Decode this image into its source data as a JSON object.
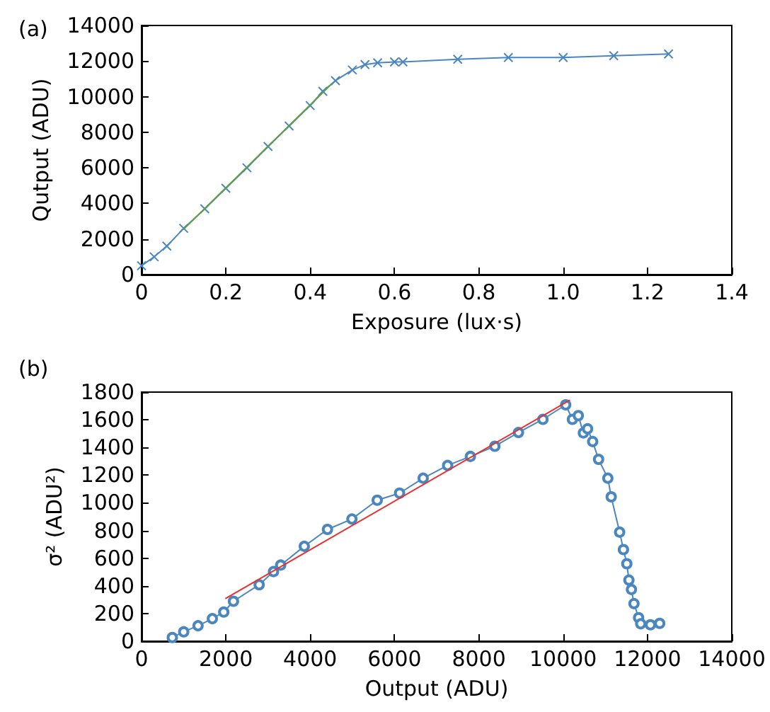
{
  "chart_data": [
    {
      "type": "line",
      "title": "(a)",
      "xlabel": "Exposure (lux·s)",
      "ylabel": "Qutput (ADU)",
      "xlim": [
        0,
        1.4
      ],
      "xticks": [
        0,
        0.2,
        0.4,
        0.6,
        0.8,
        {
          "value": 1,
          "label": "1.0"
        },
        1.2,
        1.4
      ],
      "ylim": [
        0,
        14000
      ],
      "yticks": [
        0,
        2000,
        4000,
        6000,
        8000,
        10000,
        12000,
        14000
      ],
      "grid": false,
      "marker": "cross",
      "line_style": "solid",
      "series": [
        {
          "color": "#4a86c0",
          "x": [
            0,
            0.03,
            0.06,
            0.1,
            0.15,
            0.2,
            0.25,
            0.3,
            0.35,
            0.4,
            0.43,
            0.46,
            0.5,
            0.53,
            0.56,
            0.6,
            0.62,
            0.75,
            0.87,
            1.0,
            1.12,
            1.25
          ],
          "values": [
            500,
            1000,
            1600,
            2600,
            3700,
            4850,
            6000,
            7200,
            8350,
            9500,
            10300,
            10900,
            11500,
            11800,
            11900,
            11950,
            11950,
            12100,
            12200,
            12200,
            12300,
            12400
          ]
        },
        {
          "color": "#5fa040",
          "marker": "none",
          "x": [
            0.1,
            0.45
          ],
          "values": [
            2550,
            10700
          ]
        }
      ]
    },
    {
      "type": "line",
      "title": "(b)",
      "xlabel": "Output (ADU)",
      "ylabel": "σ² (ADU²)",
      "xlim": [
        0,
        14000
      ],
      "xticks": [
        0,
        2000,
        4000,
        6000,
        8000,
        10000,
        12000,
        14000
      ],
      "ylim": [
        0,
        1800
      ],
      "yticks": [
        0,
        200,
        400,
        600,
        800,
        1000,
        1200,
        1400,
        1600,
        1800
      ],
      "grid": false,
      "marker": "circle",
      "line_style": "solid",
      "series": [
        {
          "color": "#4a86c0",
          "x": [
            730,
            1000,
            1340,
            1680,
            1950,
            2180,
            2790,
            3130,
            3300,
            3860,
            4410,
            4990,
            5590,
            6120,
            6680,
            7260,
            7800,
            8380,
            8940,
            9520,
            10060,
            10220,
            10360,
            10480,
            10580,
            10700,
            10840,
            11060,
            11140,
            11340,
            11430,
            11510,
            11560,
            11620,
            11680,
            11790,
            11840,
            12070,
            12290
          ],
          "values": [
            27,
            68,
            112,
            163,
            211,
            289,
            408,
            503,
            550,
            686,
            808,
            883,
            1019,
            1070,
            1178,
            1270,
            1335,
            1409,
            1508,
            1603,
            1708,
            1603,
            1630,
            1505,
            1535,
            1443,
            1314,
            1178,
            1043,
            788,
            662,
            560,
            442,
            374,
            272,
            170,
            126,
            119,
            129
          ]
        },
        {
          "color": "#e83030",
          "marker": "none",
          "x": [
            2000,
            10150
          ],
          "values": [
            310,
            1740
          ]
        }
      ]
    }
  ]
}
